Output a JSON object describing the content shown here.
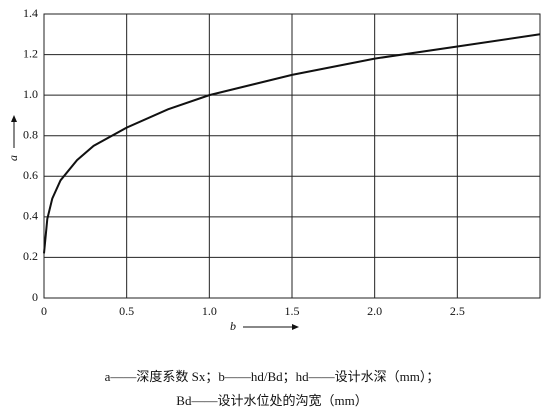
{
  "chart_data": {
    "type": "line",
    "x_label": "b",
    "y_label": "a",
    "x": [
      0,
      0.02,
      0.05,
      0.1,
      0.2,
      0.3,
      0.5,
      0.75,
      1.0,
      1.5,
      2.0,
      2.5,
      3.0
    ],
    "series": [
      {
        "color": "#111111",
        "values": [
          0.22,
          0.39,
          0.49,
          0.58,
          0.68,
          0.75,
          0.84,
          0.93,
          1.0,
          1.1,
          1.18,
          1.24,
          1.3
        ]
      }
    ],
    "xlim": [
      0,
      3.0
    ],
    "ylim": [
      0,
      1.4
    ],
    "xticks": [
      0,
      0.5,
      {
        "value": 1,
        "label": "1.0"
      },
      1.5,
      {
        "value": 2,
        "label": "2.0"
      },
      2.5
    ],
    "yticks": [
      0,
      0.2,
      0.4,
      0.6,
      0.8,
      {
        "value": 1,
        "label": "1.0"
      },
      1.2,
      1.4
    ],
    "grid": true,
    "caption": [
      "a——深度系数 Sx；b——hd/Bd；hd——设计水深（mm）；",
      "Bd——设计水位处的沟宽（mm）"
    ]
  }
}
